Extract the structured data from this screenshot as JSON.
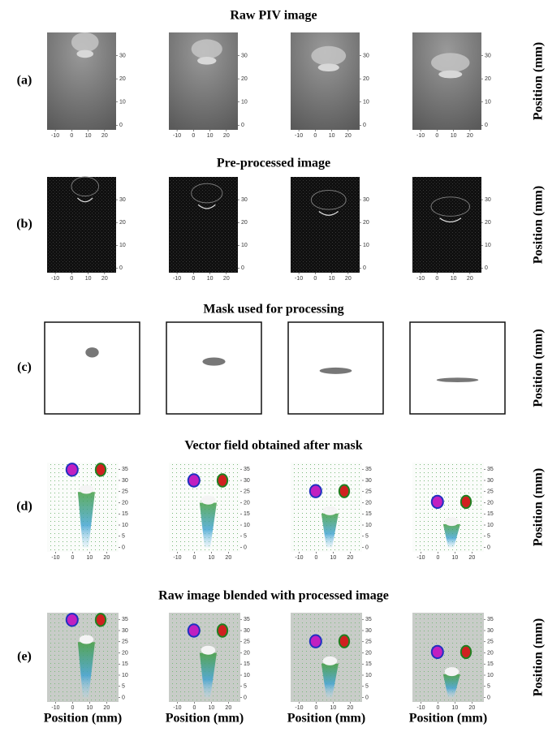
{
  "rows": [
    {
      "label": "(a)",
      "title": "Raw PIV image",
      "xlim": [
        -15,
        27
      ],
      "ylim": [
        -2,
        40
      ],
      "xticks": [
        -10,
        0,
        10,
        20
      ],
      "yticks": [
        0,
        10,
        20,
        30
      ]
    },
    {
      "label": "(b)",
      "title": "Pre-processed image",
      "xlim": [
        -15,
        27
      ],
      "ylim": [
        -2,
        40
      ],
      "xticks": [
        -10,
        0,
        10,
        20
      ],
      "yticks": [
        0,
        10,
        20,
        30
      ]
    },
    {
      "label": "(c)",
      "title": "Mask used for processing"
    },
    {
      "label": "(d)",
      "title": "Vector field obtained after mask",
      "xlim": [
        -15,
        27
      ],
      "ylim": [
        -2,
        38
      ],
      "xticks": [
        -10,
        0,
        10,
        20
      ],
      "yticks": [
        0,
        5,
        10,
        15,
        20,
        25,
        30,
        35
      ]
    },
    {
      "label": "(e)",
      "title": "Raw image blended with processed image",
      "xlim": [
        -15,
        27
      ],
      "ylim": [
        -2,
        38
      ],
      "xticks": [
        -10,
        0,
        10,
        20
      ],
      "yticks": [
        0,
        5,
        10,
        15,
        20,
        25,
        30,
        35
      ]
    }
  ],
  "side_label": "Position (mm)",
  "bottom_label": "Position (mm)"
}
